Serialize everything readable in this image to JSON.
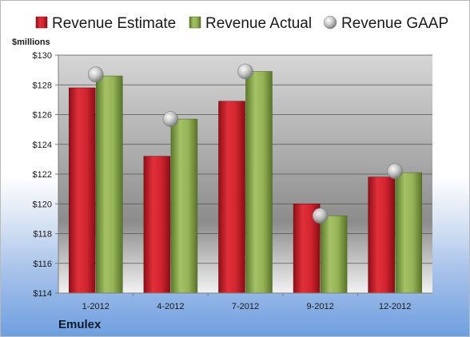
{
  "company": "Emulex",
  "chart_data": {
    "type": "bar",
    "units_label": "$millions",
    "categories": [
      "1-2012",
      "4-2012",
      "7-2012",
      "9-2012",
      "12-2012"
    ],
    "series": [
      {
        "name": "Revenue Estimate",
        "kind": "bar",
        "color": "#c8202b",
        "values": [
          127.8,
          123.2,
          126.9,
          120.0,
          121.8
        ]
      },
      {
        "name": "Revenue Actual",
        "kind": "bar",
        "color": "#8aa64d",
        "values": [
          128.6,
          125.7,
          128.9,
          119.2,
          122.1
        ]
      },
      {
        "name": "Revenue GAAP",
        "kind": "marker",
        "color": "#c0c0c0",
        "values": [
          128.7,
          125.7,
          128.9,
          119.2,
          122.2
        ]
      }
    ],
    "ylim": [
      114,
      130
    ],
    "yticks": [
      "$114",
      "$116",
      "$118",
      "$120",
      "$122",
      "$124",
      "$126",
      "$128",
      "$130"
    ],
    "ytick_values": [
      114,
      116,
      118,
      120,
      122,
      124,
      126,
      128,
      130
    ],
    "grid": true,
    "legend": "top"
  }
}
